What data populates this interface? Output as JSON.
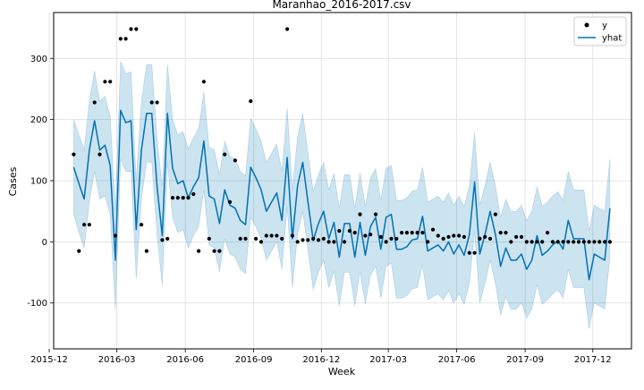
{
  "chart_data": {
    "type": "line",
    "title": "Maranhao_2016-2017.csv",
    "xlabel": "Week",
    "ylabel": "Cases",
    "xlim": [
      "2015-12-07",
      "2018-01-22"
    ],
    "ylim": [
      -175,
      375
    ],
    "x_ticks": [
      "2015-12",
      "2016-03",
      "2016-06",
      "2016-09",
      "2016-12",
      "2017-03",
      "2017-06",
      "2017-09",
      "2017-12"
    ],
    "x_tick_dates": [
      "2015-12-01",
      "2016-03-01",
      "2016-06-01",
      "2016-09-01",
      "2016-12-01",
      "2017-03-01",
      "2017-06-01",
      "2017-09-01",
      "2017-12-01"
    ],
    "y_ticks": [
      -100,
      0,
      100,
      200,
      300
    ],
    "grid": true,
    "legend": {
      "position": "top-right",
      "entries": [
        "y",
        "yhat"
      ]
    },
    "colors": {
      "points": "#000000",
      "line": "#0072b2",
      "band": "#0072b2"
    },
    "series": [
      {
        "name": "y",
        "kind": "scatter",
        "x": [
          "2016-01-03",
          "2016-01-10",
          "2016-01-17",
          "2016-01-24",
          "2016-01-31",
          "2016-02-07",
          "2016-02-14",
          "2016-02-21",
          "2016-02-28",
          "2016-03-06",
          "2016-03-13",
          "2016-03-20",
          "2016-03-27",
          "2016-04-03",
          "2016-04-10",
          "2016-04-17",
          "2016-04-24",
          "2016-05-01",
          "2016-05-08",
          "2016-05-15",
          "2016-05-22",
          "2016-05-29",
          "2016-06-05",
          "2016-06-12",
          "2016-06-19",
          "2016-06-26",
          "2016-07-03",
          "2016-07-10",
          "2016-07-17",
          "2016-07-24",
          "2016-07-31",
          "2016-08-07",
          "2016-08-14",
          "2016-08-21",
          "2016-08-28",
          "2016-09-04",
          "2016-09-11",
          "2016-09-18",
          "2016-09-25",
          "2016-10-02",
          "2016-10-09",
          "2016-10-16",
          "2016-10-23",
          "2016-10-30",
          "2016-11-06",
          "2016-11-13",
          "2016-11-20",
          "2016-11-27",
          "2016-12-04",
          "2016-12-11",
          "2016-12-18",
          "2016-12-25",
          "2017-01-01",
          "2017-01-08",
          "2017-01-15",
          "2017-01-22",
          "2017-01-29",
          "2017-02-05",
          "2017-02-12",
          "2017-02-19",
          "2017-02-26",
          "2017-03-05",
          "2017-03-12",
          "2017-03-19",
          "2017-03-26",
          "2017-04-02",
          "2017-04-09",
          "2017-04-16",
          "2017-04-23",
          "2017-04-30",
          "2017-05-07",
          "2017-05-14",
          "2017-05-21",
          "2017-05-28",
          "2017-06-04",
          "2017-06-11",
          "2017-06-18",
          "2017-06-25",
          "2017-07-02",
          "2017-07-09",
          "2017-07-16",
          "2017-07-23",
          "2017-07-30",
          "2017-08-06",
          "2017-08-13",
          "2017-08-20",
          "2017-08-27",
          "2017-09-03",
          "2017-09-10",
          "2017-09-17",
          "2017-09-24",
          "2017-10-01",
          "2017-10-08",
          "2017-10-15",
          "2017-10-22",
          "2017-10-29",
          "2017-11-05",
          "2017-11-12",
          "2017-11-19",
          "2017-11-26",
          "2017-12-03",
          "2017-12-10",
          "2017-12-17",
          "2017-12-24"
        ],
        "values": [
          143,
          -15,
          28,
          28,
          228,
          143,
          262,
          262,
          10,
          332,
          332,
          348,
          348,
          28,
          -15,
          228,
          228,
          3,
          5,
          72,
          72,
          72,
          72,
          78,
          -15,
          262,
          5,
          -15,
          -15,
          143,
          65,
          133,
          5,
          5,
          230,
          5,
          0,
          10,
          10,
          10,
          5,
          348,
          10,
          0,
          3,
          3,
          5,
          3,
          5,
          0,
          0,
          18,
          0,
          18,
          15,
          45,
          10,
          12,
          45,
          8,
          0,
          5,
          5,
          15,
          15,
          15,
          15,
          15,
          0,
          20,
          10,
          5,
          8,
          10,
          10,
          8,
          -18,
          -18,
          5,
          8,
          5,
          45,
          15,
          15,
          0,
          8,
          8,
          0,
          0,
          0,
          0,
          15,
          0,
          0,
          0,
          0,
          0,
          0,
          0,
          0,
          0,
          0,
          0,
          0
        ]
      },
      {
        "name": "yhat",
        "kind": "line",
        "x": [
          "2016-01-03",
          "2016-01-10",
          "2016-01-17",
          "2016-01-24",
          "2016-01-31",
          "2016-02-07",
          "2016-02-14",
          "2016-02-21",
          "2016-02-28",
          "2016-03-06",
          "2016-03-13",
          "2016-03-20",
          "2016-03-27",
          "2016-04-03",
          "2016-04-10",
          "2016-04-17",
          "2016-04-24",
          "2016-05-01",
          "2016-05-08",
          "2016-05-15",
          "2016-05-22",
          "2016-05-29",
          "2016-06-05",
          "2016-06-12",
          "2016-06-19",
          "2016-06-26",
          "2016-07-03",
          "2016-07-10",
          "2016-07-17",
          "2016-07-24",
          "2016-07-31",
          "2016-08-07",
          "2016-08-14",
          "2016-08-21",
          "2016-08-28",
          "2016-09-04",
          "2016-09-11",
          "2016-09-18",
          "2016-09-25",
          "2016-10-02",
          "2016-10-09",
          "2016-10-16",
          "2016-10-23",
          "2016-10-30",
          "2016-11-06",
          "2016-11-13",
          "2016-11-20",
          "2016-11-27",
          "2016-12-04",
          "2016-12-11",
          "2016-12-18",
          "2016-12-25",
          "2017-01-01",
          "2017-01-08",
          "2017-01-15",
          "2017-01-22",
          "2017-01-29",
          "2017-02-05",
          "2017-02-12",
          "2017-02-19",
          "2017-02-26",
          "2017-03-05",
          "2017-03-12",
          "2017-03-19",
          "2017-03-26",
          "2017-04-02",
          "2017-04-09",
          "2017-04-16",
          "2017-04-23",
          "2017-04-30",
          "2017-05-07",
          "2017-05-14",
          "2017-05-21",
          "2017-05-28",
          "2017-06-04",
          "2017-06-11",
          "2017-06-18",
          "2017-06-25",
          "2017-07-02",
          "2017-07-09",
          "2017-07-16",
          "2017-07-23",
          "2017-07-30",
          "2017-08-06",
          "2017-08-13",
          "2017-08-20",
          "2017-08-27",
          "2017-09-03",
          "2017-09-10",
          "2017-09-17",
          "2017-09-24",
          "2017-10-01",
          "2017-10-08",
          "2017-10-15",
          "2017-10-22",
          "2017-10-29",
          "2017-11-05",
          "2017-11-12",
          "2017-11-19",
          "2017-11-26",
          "2017-12-03",
          "2017-12-10",
          "2017-12-17",
          "2017-12-24"
        ],
        "values": [
          122,
          95,
          70,
          150,
          198,
          150,
          158,
          125,
          -30,
          215,
          195,
          198,
          20,
          150,
          210,
          210,
          90,
          10,
          210,
          120,
          95,
          100,
          72,
          90,
          105,
          165,
          75,
          70,
          30,
          85,
          60,
          55,
          35,
          28,
          122,
          105,
          85,
          50,
          65,
          80,
          35,
          138,
          5,
          92,
          130,
          65,
          2,
          30,
          50,
          5,
          32,
          -25,
          30,
          30,
          -25,
          32,
          -22,
          25,
          40,
          -12,
          40,
          45,
          -12,
          -12,
          -8,
          3,
          5,
          42,
          -15,
          -10,
          -5,
          -15,
          0,
          -20,
          -5,
          -22,
          12,
          98,
          -20,
          12,
          50,
          12,
          -40,
          -10,
          -30,
          -30,
          -20,
          -45,
          -30,
          10,
          -22,
          -15,
          -5,
          2,
          -12,
          35,
          5,
          5,
          5,
          -62,
          -20,
          -25,
          -30,
          55
        ]
      }
    ],
    "band": {
      "name": "uncertainty",
      "lower": [
        45,
        15,
        -10,
        65,
        115,
        70,
        75,
        45,
        -110,
        135,
        115,
        115,
        -60,
        70,
        130,
        130,
        10,
        -70,
        130,
        40,
        15,
        20,
        -10,
        10,
        25,
        85,
        -5,
        -10,
        -50,
        5,
        -20,
        -25,
        -45,
        -52,
        40,
        25,
        5,
        -30,
        -15,
        0,
        -45,
        58,
        -75,
        12,
        50,
        -15,
        -78,
        -50,
        -30,
        -75,
        -48,
        -105,
        -50,
        -50,
        -105,
        -48,
        -102,
        -55,
        -40,
        -92,
        -40,
        -35,
        -92,
        -92,
        -88,
        -77,
        -75,
        -38,
        -95,
        -90,
        -85,
        -95,
        -80,
        -100,
        -85,
        -102,
        -68,
        18,
        -100,
        -68,
        -30,
        -68,
        -120,
        -90,
        -110,
        -110,
        -100,
        -125,
        -110,
        -70,
        -102,
        -95,
        -85,
        -78,
        -92,
        -45,
        -75,
        -75,
        -75,
        -142,
        -100,
        -105,
        -110,
        -25
      ],
      "upper": [
        200,
        175,
        150,
        230,
        280,
        230,
        238,
        205,
        50,
        295,
        275,
        278,
        100,
        230,
        290,
        290,
        170,
        90,
        290,
        200,
        175,
        180,
        152,
        170,
        185,
        245,
        155,
        150,
        110,
        165,
        140,
        135,
        115,
        108,
        202,
        185,
        165,
        130,
        145,
        160,
        115,
        218,
        85,
        172,
        210,
        145,
        82,
        110,
        130,
        85,
        112,
        55,
        110,
        110,
        55,
        112,
        58,
        105,
        120,
        68,
        120,
        125,
        68,
        68,
        72,
        83,
        85,
        122,
        65,
        70,
        75,
        65,
        80,
        60,
        75,
        58,
        92,
        178,
        60,
        92,
        130,
        92,
        40,
        70,
        50,
        50,
        60,
        35,
        50,
        90,
        58,
        65,
        75,
        82,
        68,
        115,
        85,
        85,
        85,
        18,
        60,
        55,
        50,
        135
      ]
    }
  }
}
